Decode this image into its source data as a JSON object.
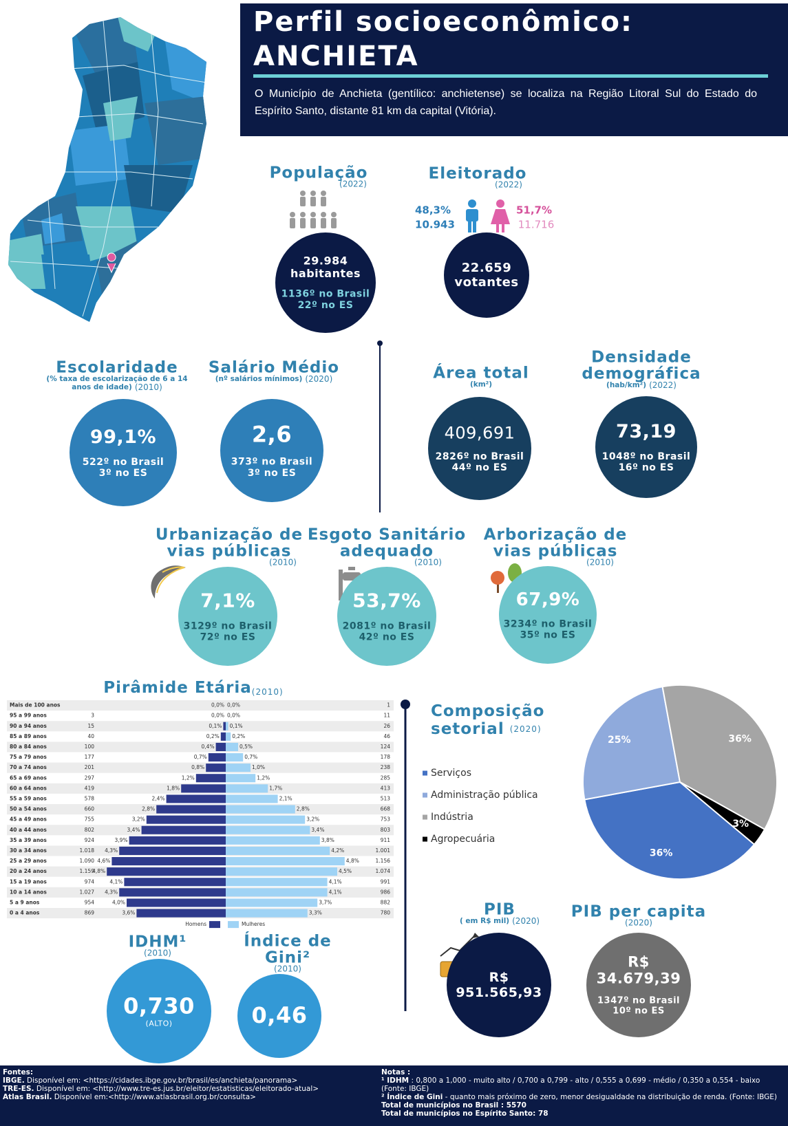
{
  "header": {
    "title_lines": [
      "Perfil socioeconômico:",
      "ANCHIETA"
    ],
    "description": "O Município de Anchieta (gentílico: anchietense) se localiza na Região Litoral Sul do Estado do Espírito Santo, distante 81 km da capital (Vitória)."
  },
  "indicators": {
    "population": {
      "title": [
        "População"
      ],
      "year": "(2022)",
      "value": [
        "29.984"
      ],
      "unit": "habitantes",
      "ranks": [
        "1136º no Brasil",
        "22º no ES"
      ]
    },
    "electorate": {
      "title": [
        "Eleitorado"
      ],
      "year": "(2022)",
      "value": [
        "22.659"
      ],
      "unit": "votantes"
    },
    "education": {
      "title": [
        "Escolaridade"
      ],
      "note": [
        "(% taxa de escolarização de 6 a 14",
        "anos de idade)"
      ],
      "year": "(2010)",
      "value": [
        "99,1%"
      ],
      "ranks": [
        "522º no Brasil",
        "3º no ES"
      ]
    },
    "salary": {
      "title": [
        "Salário Médio"
      ],
      "note": [
        "(nº salários mínimos)"
      ],
      "year": "(2020)",
      "value": [
        "2,6"
      ],
      "ranks": [
        "373º no Brasil",
        "3º no ES"
      ]
    },
    "area": {
      "title": [
        "Área total"
      ],
      "note": [
        "(km²)"
      ],
      "value": [
        "409,691"
      ],
      "ranks": [
        "2826º no Brasil",
        "44º no ES"
      ]
    },
    "density": {
      "title": [
        "Densidade",
        "demográfica"
      ],
      "note": [
        "(hab/km²)"
      ],
      "year": "(2022)",
      "value": [
        "73,19"
      ],
      "ranks": [
        "1048º no Brasil",
        "16º no ES"
      ]
    },
    "urbanization": {
      "title": [
        "Urbanização de",
        "vias públicas"
      ],
      "year": "(2010)",
      "value": [
        "7,1%"
      ],
      "ranks": [
        "3129º no Brasil",
        "72º no ES"
      ]
    },
    "sewage": {
      "title": [
        "Esgoto Sanitário",
        "adequado"
      ],
      "year": "(2010)",
      "value": [
        "53,7%"
      ],
      "ranks": [
        "2081º no Brasil",
        "42º no ES"
      ]
    },
    "trees": {
      "title": [
        "Arborização de",
        "vias públicas"
      ],
      "year": "(2010)",
      "value": [
        "67,9%"
      ],
      "ranks": [
        "3234º no Brasil",
        "35º no ES"
      ]
    },
    "idhm": {
      "title": [
        "IDHM¹"
      ],
      "year": "(2010)",
      "value": [
        "0,730"
      ],
      "unit": "(ALTO)"
    },
    "gini": {
      "title": [
        "Índice de",
        "Gini²"
      ],
      "year": "(2010)",
      "value": [
        "0,46"
      ]
    },
    "gdp": {
      "title": [
        "PIB"
      ],
      "note": [
        "( em R$ mil)"
      ],
      "year": "(2020)",
      "value": [
        "R$",
        "951.565,93"
      ]
    },
    "gdp_per_capita": {
      "title": [
        "PIB per capita"
      ],
      "year": "(2020)",
      "value": [
        "R$",
        "34.679,39"
      ],
      "ranks": [
        "1347º no Brasil",
        "10º no ES"
      ]
    }
  },
  "electorate_split": {
    "men": {
      "percent": "48,3%",
      "count": "10.943"
    },
    "women": {
      "percent": "51,7%",
      "count": "11.716"
    }
  },
  "pyramid": {
    "type": "bar",
    "title": "Pirâmide Etária",
    "year": "(2010)",
    "categories": [
      "Mais de 100 anos",
      "95 a 99 anos",
      "90 a 94 anos",
      "85 a 89 anos",
      "80 a 84 anos",
      "75 a 79 anos",
      "70 a 74 anos",
      "65 a 69 anos",
      "60 a 64 anos",
      "55 a 59 anos",
      "50 a 54 anos",
      "45 a 49 anos",
      "40 a 44 anos",
      "35 a 39 anos",
      "30 a 34 anos",
      "25 a 29 anos",
      "20 a 24 anos",
      "15 a 19 anos",
      "10 a 14 anos",
      "5 a 9 anos",
      "0 a 4 anos"
    ],
    "series": [
      {
        "name": "Homens",
        "color": "#2e3a8c",
        "values": [
          0,
          0,
          0.1,
          0.2,
          0.4,
          0.7,
          0.8,
          1.2,
          1.8,
          2.4,
          2.8,
          3.2,
          3.4,
          3.9,
          4.3,
          4.6,
          4.8,
          4.1,
          4.3,
          4.0,
          3.6
        ],
        "value_labels": [
          "0,0%",
          "0,0%",
          "0,1%",
          "0,2%",
          "0,4%",
          "0,7%",
          "0,8%",
          "1,2%",
          "1,8%",
          "2,4%",
          "2,8%",
          "3,2%",
          "3,4%",
          "3,9%",
          "4,3%",
          "4,6%",
          "4,8%",
          "4,1%",
          "4,3%",
          "4,0%",
          "3,6%"
        ],
        "counts": [
          null,
          "3",
          "15",
          "40",
          "100",
          "177",
          "201",
          "297",
          "419",
          "578",
          "660",
          "755",
          "802",
          "924",
          "1.018",
          "1.090",
          "1.159",
          "974",
          "1.027",
          "954",
          "869"
        ]
      },
      {
        "name": "Mulheres",
        "color": "#9fd3f5",
        "values": [
          0,
          0,
          0.1,
          0.2,
          0.5,
          0.7,
          1.0,
          1.2,
          1.7,
          2.1,
          2.8,
          3.2,
          3.4,
          3.8,
          4.2,
          4.8,
          4.5,
          4.1,
          4.1,
          3.7,
          3.3
        ],
        "value_labels": [
          "0,0%",
          "0,0%",
          "0,1%",
          "0,2%",
          "0,5%",
          "0,7%",
          "1,0%",
          "1,2%",
          "1,7%",
          "2,1%",
          "2,8%",
          "3,2%",
          "3,4%",
          "3,8%",
          "4,2%",
          "4,8%",
          "4,5%",
          "4,1%",
          "4,1%",
          "3,7%",
          "3,3%"
        ],
        "counts": [
          "1",
          "11",
          "26",
          "46",
          "124",
          "178",
          "238",
          "285",
          "413",
          "513",
          "668",
          "753",
          "803",
          "911",
          "1.001",
          "1.156",
          "1.074",
          "991",
          "986",
          "882",
          "780"
        ]
      }
    ]
  },
  "sector": {
    "type": "pie",
    "title": [
      "Composição",
      "setorial"
    ],
    "year": "(2020)",
    "categories": [
      "Serviços",
      "Administração pública",
      "Indústria",
      "Agropecuária"
    ],
    "values": [
      36,
      25,
      36,
      3
    ],
    "value_labels": [
      "36%",
      "25%",
      "36%",
      "3%"
    ],
    "colors": [
      "#4472c4",
      "#8faadc",
      "#a5a5a5",
      "#000000"
    ]
  },
  "footer": {
    "sources_title": "Fontes:",
    "sources": [
      {
        "name": "IBGE.",
        "text": "Disponível em: <https://cidades.ibge.gov.br/brasil/es/anchieta/panorama>"
      },
      {
        "name": "TRE-ES.",
        "text": "Disponível em: <http://www.tre-es.jus.br/eleitor/estatisticas/eleitorado-atual>"
      },
      {
        "name": "Atlas Brasil.",
        "text": "Disponível em:<http://www.atlasbrasil.org.br/consulta>"
      }
    ],
    "notes_title": "Notas :",
    "notes": [
      {
        "label": "¹ IDHM",
        "text": ": 0,800 a 1,000 - muito alto / 0,700 a 0,799 - alto / 0,555 a 0,699 - médio / 0,350 a 0,554 - baixo (Fonte: IBGE)"
      },
      {
        "label": "² Índice de Gini",
        "text": "- quanto mais próximo de zero, menor desigualdade na distribuição de renda. (Fonte: IBGE)"
      }
    ],
    "totals": [
      "Total de municípios no Brasil : 5570",
      "Total de municípios no Espírito Santo: 78"
    ]
  }
}
